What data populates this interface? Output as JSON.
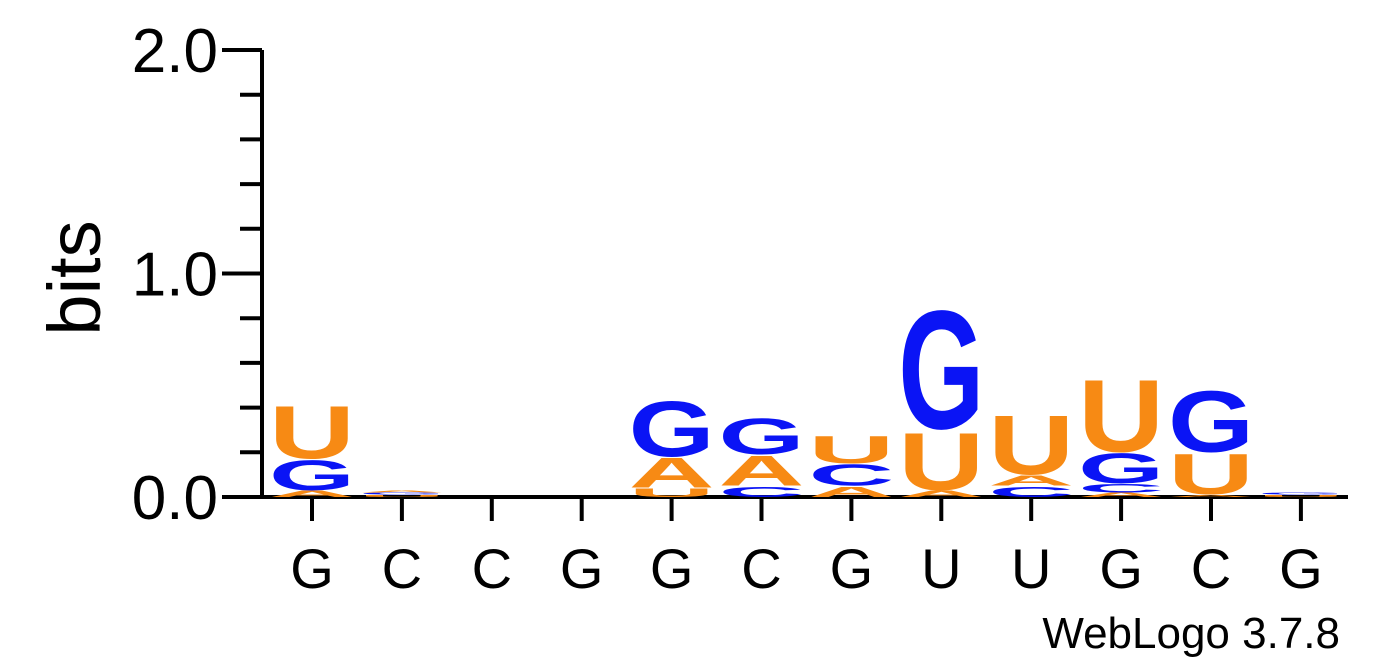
{
  "chart_data": {
    "type": "sequence-logo",
    "ylabel": "bits",
    "ylim": [
      0,
      2.0
    ],
    "yticks": [
      "0.0",
      "1.0",
      "2.0"
    ],
    "positions": [
      "G",
      "C",
      "C",
      "G",
      "G",
      "C",
      "G",
      "U",
      "U",
      "G",
      "C",
      "G"
    ],
    "colors": {
      "A": "#f78a14",
      "U": "#f78a14",
      "G": "#0a14f5",
      "C": "#0a14f5"
    },
    "stacks": [
      [
        {
          "letter": "A",
          "bits": 0.03
        },
        {
          "letter": "G",
          "bits": 0.14
        },
        {
          "letter": "U",
          "bits": 0.25
        }
      ],
      [
        {
          "letter": "U",
          "bits": 0.01
        },
        {
          "letter": "G",
          "bits": 0.01
        },
        {
          "letter": "A",
          "bits": 0.01
        }
      ],
      [],
      [],
      [
        {
          "letter": "U",
          "bits": 0.04
        },
        {
          "letter": "A",
          "bits": 0.14
        },
        {
          "letter": "G",
          "bits": 0.26
        }
      ],
      [
        {
          "letter": "C",
          "bits": 0.05
        },
        {
          "letter": "A",
          "bits": 0.14
        },
        {
          "letter": "G",
          "bits": 0.17
        }
      ],
      [
        {
          "letter": "A",
          "bits": 0.05
        },
        {
          "letter": "C",
          "bits": 0.1
        },
        {
          "letter": "U",
          "bits": 0.13
        }
      ],
      [
        {
          "letter": "A",
          "bits": 0.03
        },
        {
          "letter": "U",
          "bits": 0.27
        },
        {
          "letter": "G",
          "bits": 0.56
        }
      ],
      [
        {
          "letter": "C",
          "bits": 0.05
        },
        {
          "letter": "A",
          "bits": 0.05
        },
        {
          "letter": "U",
          "bits": 0.28
        }
      ],
      [
        {
          "letter": "A",
          "bits": 0.02
        },
        {
          "letter": "C",
          "bits": 0.04
        },
        {
          "letter": "G",
          "bits": 0.14
        },
        {
          "letter": "U",
          "bits": 0.34
        }
      ],
      [
        {
          "letter": "A",
          "bits": 0.01
        },
        {
          "letter": "U",
          "bits": 0.19
        },
        {
          "letter": "G",
          "bits": 0.29
        }
      ],
      [
        {
          "letter": "U",
          "bits": 0.01
        },
        {
          "letter": "G",
          "bits": 0.01
        }
      ]
    ]
  },
  "footer": {
    "credit": "WebLogo 3.7.8"
  }
}
